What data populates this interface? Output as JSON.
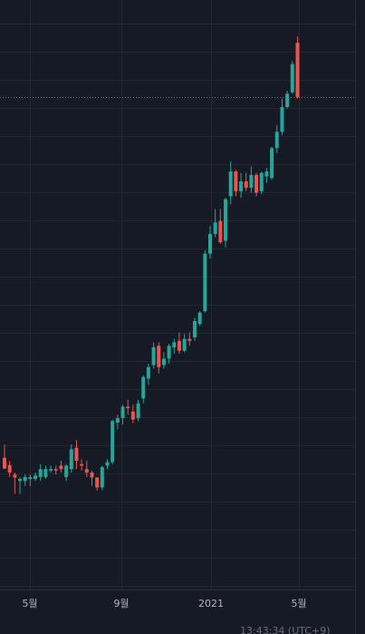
{
  "chart_data": {
    "type": "candlestick",
    "title": "",
    "xlabel": "",
    "ylabel": "",
    "grid": true,
    "x_tick_labels": [
      "5월",
      "9월",
      "2021",
      "5월"
    ],
    "last_price_line": true,
    "ylim": [
      0,
      100
    ],
    "colors": {
      "up": "#26a69a",
      "down": "#ef5350",
      "grid": "#232733",
      "background": "#161a25",
      "price_line": "#ef5350"
    },
    "candles": [
      {
        "o": 14.9,
        "h": 17.6,
        "l": 12.7,
        "c": 12.7
      },
      {
        "o": 13.4,
        "h": 14.3,
        "l": 11.0,
        "c": 11.9
      },
      {
        "o": 11.5,
        "h": 11.9,
        "l": 7.6,
        "c": 10.9
      },
      {
        "o": 10.2,
        "h": 11.0,
        "l": 7.6,
        "c": 10.6
      },
      {
        "o": 10.2,
        "h": 11.5,
        "l": 9.2,
        "c": 11.0
      },
      {
        "o": 10.6,
        "h": 11.5,
        "l": 9.2,
        "c": 11.0
      },
      {
        "o": 10.6,
        "h": 11.9,
        "l": 10.2,
        "c": 11.3
      },
      {
        "o": 11.0,
        "h": 13.6,
        "l": 10.2,
        "c": 12.6
      },
      {
        "o": 11.0,
        "h": 13.3,
        "l": 10.6,
        "c": 12.6
      },
      {
        "o": 12.3,
        "h": 13.3,
        "l": 11.9,
        "c": 12.6
      },
      {
        "o": 12.6,
        "h": 13.3,
        "l": 11.5,
        "c": 12.3
      },
      {
        "o": 13.3,
        "h": 14.3,
        "l": 11.9,
        "c": 12.6
      },
      {
        "o": 11.0,
        "h": 13.6,
        "l": 10.2,
        "c": 13.3
      },
      {
        "o": 12.6,
        "h": 17.6,
        "l": 11.9,
        "c": 16.6
      },
      {
        "o": 16.9,
        "h": 18.5,
        "l": 12.6,
        "c": 14.3
      },
      {
        "o": 13.6,
        "h": 14.6,
        "l": 12.3,
        "c": 13.3
      },
      {
        "o": 12.6,
        "h": 14.3,
        "l": 11.0,
        "c": 11.9
      },
      {
        "o": 11.9,
        "h": 12.3,
        "l": 9.2,
        "c": 10.9
      },
      {
        "o": 10.9,
        "h": 11.0,
        "l": 8.3,
        "c": 8.9
      },
      {
        "o": 8.9,
        "h": 13.3,
        "l": 8.3,
        "c": 13.0
      },
      {
        "o": 13.3,
        "h": 14.6,
        "l": 12.6,
        "c": 14.0
      },
      {
        "o": 14.0,
        "h": 22.6,
        "l": 13.6,
        "c": 22.3
      },
      {
        "o": 22.0,
        "h": 23.6,
        "l": 20.6,
        "c": 22.9
      },
      {
        "o": 22.9,
        "h": 25.6,
        "l": 21.6,
        "c": 25.2
      },
      {
        "o": 25.2,
        "h": 26.6,
        "l": 23.6,
        "c": 24.9
      },
      {
        "o": 24.2,
        "h": 25.6,
        "l": 21.9,
        "c": 22.6
      },
      {
        "o": 22.9,
        "h": 26.6,
        "l": 22.3,
        "c": 25.9
      },
      {
        "o": 26.9,
        "h": 31.5,
        "l": 25.9,
        "c": 31.2
      },
      {
        "o": 30.9,
        "h": 33.9,
        "l": 29.6,
        "c": 33.2
      },
      {
        "o": 33.6,
        "h": 38.2,
        "l": 32.9,
        "c": 37.2
      },
      {
        "o": 37.5,
        "h": 38.2,
        "l": 31.9,
        "c": 33.2
      },
      {
        "o": 33.6,
        "h": 36.2,
        "l": 32.9,
        "c": 34.9
      },
      {
        "o": 34.9,
        "h": 37.9,
        "l": 33.9,
        "c": 37.5
      },
      {
        "o": 37.2,
        "h": 38.9,
        "l": 35.9,
        "c": 38.2
      },
      {
        "o": 38.5,
        "h": 40.2,
        "l": 35.9,
        "c": 36.5
      },
      {
        "o": 36.5,
        "h": 39.9,
        "l": 36.2,
        "c": 38.9
      },
      {
        "o": 38.9,
        "h": 40.2,
        "l": 37.5,
        "c": 38.5
      },
      {
        "o": 39.2,
        "h": 43.2,
        "l": 38.5,
        "c": 42.5
      },
      {
        "o": 41.9,
        "h": 44.5,
        "l": 41.5,
        "c": 44.2
      },
      {
        "o": 44.5,
        "h": 56.8,
        "l": 44.2,
        "c": 56.1
      },
      {
        "o": 56.1,
        "h": 61.8,
        "l": 55.1,
        "c": 60.1
      },
      {
        "o": 60.1,
        "h": 65.1,
        "l": 59.4,
        "c": 62.4
      },
      {
        "o": 62.7,
        "h": 65.1,
        "l": 58.1,
        "c": 58.4
      },
      {
        "o": 58.7,
        "h": 67.4,
        "l": 57.4,
        "c": 67.1
      },
      {
        "o": 67.7,
        "h": 74.7,
        "l": 66.1,
        "c": 72.7
      },
      {
        "o": 72.7,
        "h": 73.0,
        "l": 67.7,
        "c": 68.7
      },
      {
        "o": 68.7,
        "h": 72.4,
        "l": 67.4,
        "c": 70.7
      },
      {
        "o": 70.7,
        "h": 72.4,
        "l": 68.7,
        "c": 69.4
      },
      {
        "o": 69.4,
        "h": 73.7,
        "l": 68.4,
        "c": 72.0
      },
      {
        "o": 72.0,
        "h": 72.4,
        "l": 67.7,
        "c": 68.4
      },
      {
        "o": 68.7,
        "h": 72.7,
        "l": 68.1,
        "c": 72.4
      },
      {
        "o": 71.7,
        "h": 73.4,
        "l": 70.4,
        "c": 72.7
      },
      {
        "o": 71.4,
        "h": 77.7,
        "l": 71.0,
        "c": 77.4
      },
      {
        "o": 77.4,
        "h": 82.0,
        "l": 76.4,
        "c": 80.7
      },
      {
        "o": 80.7,
        "h": 87.4,
        "l": 80.0,
        "c": 85.7
      },
      {
        "o": 85.7,
        "h": 89.0,
        "l": 85.4,
        "c": 88.4
      },
      {
        "o": 88.7,
        "h": 95.0,
        "l": 88.4,
        "c": 94.4
      },
      {
        "o": 98.7,
        "h": 100.0,
        "l": 87.4,
        "c": 87.7
      }
    ]
  },
  "footer": {
    "clock": "13:43:34 (UTC+9)"
  }
}
